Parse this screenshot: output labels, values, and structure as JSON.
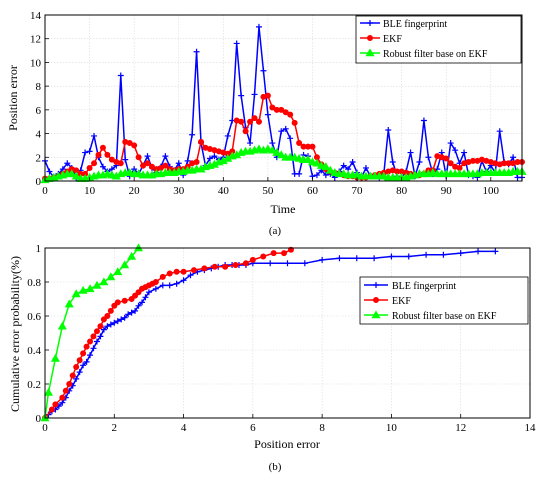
{
  "chart_data": [
    {
      "panel": "(a)",
      "type": "line",
      "xlabel": "Time",
      "ylabel": "Position error",
      "xlim": [
        0,
        107
      ],
      "ylim": [
        0,
        14
      ],
      "xticks": [
        0,
        10,
        20,
        30,
        40,
        50,
        60,
        70,
        80,
        90,
        100
      ],
      "yticks": [
        0,
        2,
        4,
        6,
        8,
        10,
        12,
        14
      ],
      "grid": true,
      "legend_position": "top-right",
      "series": [
        {
          "name": "BLE fingerprint",
          "color": "#0000ff",
          "marker": "plus",
          "x": [
            0,
            1,
            2,
            3,
            4,
            5,
            6,
            7,
            8,
            9,
            10,
            11,
            12,
            13,
            14,
            15,
            16,
            17,
            18,
            19,
            20,
            21,
            22,
            23,
            24,
            25,
            26,
            27,
            28,
            29,
            30,
            31,
            32,
            33,
            34,
            35,
            36,
            37,
            38,
            39,
            40,
            41,
            42,
            43,
            44,
            45,
            46,
            47,
            48,
            49,
            50,
            51,
            52,
            53,
            54,
            55,
            56,
            57,
            58,
            59,
            60,
            61,
            62,
            63,
            64,
            65,
            66,
            67,
            68,
            69,
            70,
            71,
            72,
            73,
            74,
            75,
            76,
            77,
            78,
            79,
            80,
            81,
            82,
            83,
            84,
            85,
            86,
            87,
            88,
            89,
            90,
            91,
            92,
            93,
            94,
            95,
            96,
            97,
            98,
            99,
            100,
            101,
            102,
            103,
            104,
            105,
            106,
            107
          ],
          "values": [
            1.7,
            0.8,
            0.3,
            0.6,
            1.0,
            1.5,
            1.1,
            0.3,
            0.9,
            2.4,
            2.5,
            3.8,
            2.0,
            1.2,
            0.8,
            1.0,
            1.3,
            8.9,
            1.8,
            0.4,
            1.0,
            0.6,
            1.3,
            2.1,
            1.1,
            0.7,
            1.2,
            2.1,
            1.2,
            0.9,
            1.5,
            0.5,
            1.7,
            3.9,
            10.9,
            3.2,
            1.3,
            1.9,
            2.1,
            1.8,
            2.0,
            3.8,
            5.1,
            11.6,
            7.2,
            4.5,
            3.2,
            7.3,
            13.0,
            9.3,
            5.6,
            3.2,
            2.0,
            4.2,
            4.4,
            3.6,
            0.6,
            0.6,
            2.2,
            2.1,
            0.4,
            0.5,
            0.9,
            0.5,
            0.6,
            0.3,
            0.8,
            1.3,
            1.0,
            1.6,
            0.7,
            0.3,
            1.1,
            0.4,
            0.4,
            0.3,
            0.6,
            4.3,
            1.6,
            0.4,
            0.3,
            0.8,
            2.4,
            0.4,
            1.6,
            5.1,
            2.0,
            0.6,
            1.0,
            2.4,
            0.4,
            3.2,
            2.6,
            1.5,
            2.4,
            0.5,
            0.4,
            0.3,
            1.7,
            0.8,
            1.3,
            0.7,
            4.2,
            1.6,
            1.4,
            2.0,
            0.3,
            0.3
          ],
          "x_note": ""
        },
        {
          "name": "EKF",
          "color": "#ff0000",
          "marker": "circle",
          "x": [
            0,
            1,
            2,
            3,
            4,
            5,
            6,
            7,
            8,
            9,
            10,
            11,
            12,
            13,
            14,
            15,
            16,
            17,
            18,
            19,
            20,
            21,
            22,
            23,
            24,
            25,
            26,
            27,
            28,
            29,
            30,
            31,
            32,
            33,
            34,
            35,
            36,
            37,
            38,
            39,
            40,
            41,
            42,
            43,
            44,
            45,
            46,
            47,
            48,
            49,
            50,
            51,
            52,
            53,
            54,
            55,
            56,
            57,
            58,
            59,
            60,
            61,
            62,
            63,
            64,
            65,
            66,
            67,
            68,
            69,
            70,
            71,
            72,
            73,
            74,
            75,
            76,
            77,
            78,
            79,
            80,
            81,
            82,
            83,
            84,
            85,
            86,
            87,
            88,
            89,
            90,
            91,
            92,
            93,
            94,
            95,
            96,
            97,
            98,
            99,
            100,
            101,
            102,
            103,
            104,
            105,
            106,
            107
          ],
          "values": [
            0.2,
            0.2,
            0.3,
            0.4,
            0.6,
            0.8,
            1.0,
            0.9,
            0.6,
            0.6,
            1.1,
            1.5,
            2.2,
            2.8,
            2.2,
            1.8,
            1.6,
            1.5,
            3.3,
            3.2,
            3.0,
            2.0,
            1.3,
            1.5,
            1.2,
            1.0,
            1.1,
            1.3,
            1.0,
            0.9,
            1.0,
            1.0,
            1.2,
            1.5,
            1.6,
            3.3,
            2.8,
            2.7,
            2.6,
            2.5,
            2.4,
            2.3,
            2.5,
            5.1,
            5.0,
            4.2,
            5.0,
            5.3,
            5.0,
            7.1,
            7.2,
            6.2,
            6.0,
            6.0,
            5.8,
            5.6,
            4.9,
            3.2,
            2.9,
            2.9,
            2.9,
            2.0,
            1.4,
            1.0,
            0.8,
            0.7,
            0.6,
            0.5,
            0.4,
            0.4,
            0.3,
            0.3,
            0.3,
            0.4,
            0.5,
            0.6,
            0.7,
            0.8,
            0.9,
            0.8,
            0.8,
            0.7,
            0.6,
            0.5,
            0.5,
            0.6,
            0.9,
            0.9,
            2.1,
            2.0,
            1.9,
            1.5,
            1.2,
            1.1,
            1.5,
            1.6,
            1.7,
            1.7,
            1.8,
            1.7,
            1.6,
            1.5,
            1.4,
            1.5,
            1.5,
            1.5,
            1.6,
            1.6
          ]
        },
        {
          "name": "Robust filter base on EKF",
          "color": "#00ff00",
          "marker": "triangle",
          "x": [
            0,
            1,
            2,
            3,
            4,
            5,
            6,
            7,
            8,
            9,
            10,
            11,
            12,
            13,
            14,
            15,
            16,
            17,
            18,
            19,
            20,
            21,
            22,
            23,
            24,
            25,
            26,
            27,
            28,
            29,
            30,
            31,
            32,
            33,
            34,
            35,
            36,
            37,
            38,
            39,
            40,
            41,
            42,
            43,
            44,
            45,
            46,
            47,
            48,
            49,
            50,
            51,
            52,
            53,
            54,
            55,
            56,
            57,
            58,
            59,
            60,
            61,
            62,
            63,
            64,
            65,
            66,
            67,
            68,
            69,
            70,
            71,
            72,
            73,
            74,
            75,
            76,
            77,
            78,
            79,
            80,
            81,
            82,
            83,
            84,
            85,
            86,
            87,
            88,
            89,
            90,
            91,
            92,
            93,
            94,
            95,
            96,
            97,
            98,
            99,
            100,
            101,
            102,
            103,
            104,
            105,
            106,
            107
          ],
          "values": [
            0.1,
            0.2,
            0.3,
            0.4,
            0.5,
            0.6,
            0.6,
            0.4,
            0.2,
            0.2,
            0.3,
            0.4,
            0.5,
            0.5,
            0.6,
            0.5,
            0.4,
            0.6,
            0.7,
            0.7,
            0.6,
            0.6,
            0.5,
            0.5,
            0.5,
            0.6,
            0.6,
            0.7,
            0.7,
            0.7,
            0.8,
            0.8,
            0.9,
            0.9,
            1.0,
            1.0,
            1.2,
            1.3,
            1.4,
            1.6,
            1.7,
            1.9,
            2.1,
            2.2,
            2.4,
            2.5,
            2.5,
            2.6,
            2.7,
            2.6,
            2.7,
            2.6,
            2.4,
            2.2,
            2.0,
            2.0,
            2.0,
            1.9,
            1.8,
            1.8,
            1.6,
            1.5,
            1.3,
            1.2,
            0.9,
            0.7,
            0.6,
            0.6,
            0.5,
            0.5,
            0.5,
            0.4,
            0.4,
            0.4,
            0.4,
            0.4,
            0.4,
            0.3,
            0.3,
            0.3,
            0.3,
            0.3,
            0.4,
            0.5,
            0.6,
            0.6,
            0.6,
            0.7,
            0.6,
            0.6,
            0.6,
            0.6,
            0.6,
            0.6,
            0.6,
            0.6,
            0.6,
            0.6,
            0.7,
            0.7,
            0.7,
            0.7,
            0.7,
            0.7,
            0.7,
            0.8,
            0.8,
            0.8
          ]
        }
      ]
    },
    {
      "panel": "(b)",
      "type": "line",
      "xlabel": "Position error",
      "ylabel": "Cumulative error probability(%)",
      "xlim": [
        0,
        14
      ],
      "ylim": [
        0,
        1
      ],
      "xticks": [
        0,
        2,
        4,
        6,
        8,
        10,
        12,
        14
      ],
      "yticks": [
        0,
        0.2,
        0.4,
        0.6,
        0.8,
        1
      ],
      "grid": true,
      "legend_position": "right",
      "series": [
        {
          "name": "BLE fingerprint",
          "color": "#0000ff",
          "marker": "plus",
          "x": [
            0,
            0.1,
            0.2,
            0.3,
            0.4,
            0.5,
            0.6,
            0.7,
            0.8,
            0.9,
            1.0,
            1.1,
            1.2,
            1.3,
            1.4,
            1.5,
            1.6,
            1.7,
            1.8,
            1.9,
            2.0,
            2.1,
            2.2,
            2.3,
            2.4,
            2.5,
            2.6,
            2.7,
            2.8,
            2.9,
            3.0,
            3.2,
            3.4,
            3.6,
            3.8,
            4.0,
            4.2,
            4.4,
            4.6,
            4.8,
            5.0,
            5.2,
            5.4,
            5.6,
            5.8,
            6.0,
            6.5,
            7.0,
            7.5,
            8.0,
            8.5,
            9.0,
            9.5,
            10.0,
            10.5,
            11.0,
            11.5,
            12.0,
            12.5,
            13.0
          ],
          "values": [
            0,
            0.02,
            0.04,
            0.05,
            0.07,
            0.09,
            0.12,
            0.16,
            0.19,
            0.23,
            0.27,
            0.31,
            0.33,
            0.37,
            0.41,
            0.45,
            0.48,
            0.52,
            0.54,
            0.55,
            0.56,
            0.57,
            0.58,
            0.59,
            0.61,
            0.62,
            0.63,
            0.66,
            0.68,
            0.71,
            0.74,
            0.76,
            0.78,
            0.78,
            0.79,
            0.81,
            0.84,
            0.86,
            0.87,
            0.88,
            0.89,
            0.9,
            0.9,
            0.9,
            0.9,
            0.91,
            0.91,
            0.91,
            0.91,
            0.93,
            0.94,
            0.94,
            0.94,
            0.95,
            0.95,
            0.96,
            0.96,
            0.97,
            0.98,
            0.98
          ]
        },
        {
          "name": "EKF",
          "color": "#ff0000",
          "marker": "circle",
          "x": [
            0,
            0.2,
            0.3,
            0.5,
            0.6,
            0.7,
            0.8,
            0.9,
            1.0,
            1.1,
            1.2,
            1.3,
            1.4,
            1.5,
            1.6,
            1.7,
            1.8,
            1.9,
            2.0,
            2.1,
            2.3,
            2.5,
            2.6,
            2.7,
            2.8,
            2.9,
            3.0,
            3.1,
            3.2,
            3.4,
            3.6,
            3.8,
            4.0,
            4.3,
            4.6,
            4.9,
            5.2,
            5.5,
            5.8,
            6.0,
            6.3,
            6.6,
            6.9,
            7.1
          ],
          "values": [
            0,
            0.05,
            0.08,
            0.12,
            0.16,
            0.2,
            0.25,
            0.3,
            0.34,
            0.38,
            0.42,
            0.45,
            0.48,
            0.51,
            0.54,
            0.58,
            0.6,
            0.63,
            0.66,
            0.68,
            0.69,
            0.7,
            0.72,
            0.74,
            0.76,
            0.77,
            0.78,
            0.79,
            0.8,
            0.83,
            0.85,
            0.86,
            0.86,
            0.87,
            0.88,
            0.89,
            0.89,
            0.9,
            0.91,
            0.93,
            0.95,
            0.97,
            0.97,
            0.99
          ]
        },
        {
          "name": "Robust filter base on EKF",
          "color": "#00ff00",
          "marker": "triangle",
          "x": [
            0,
            0.1,
            0.3,
            0.5,
            0.7,
            0.9,
            1.1,
            1.3,
            1.5,
            1.7,
            1.9,
            2.1,
            2.3,
            2.5,
            2.7
          ],
          "values": [
            0,
            0.15,
            0.35,
            0.54,
            0.67,
            0.73,
            0.75,
            0.76,
            0.78,
            0.8,
            0.83,
            0.86,
            0.9,
            0.95,
            1.0
          ]
        }
      ]
    }
  ],
  "captions": [
    "(a)",
    "(b)"
  ]
}
